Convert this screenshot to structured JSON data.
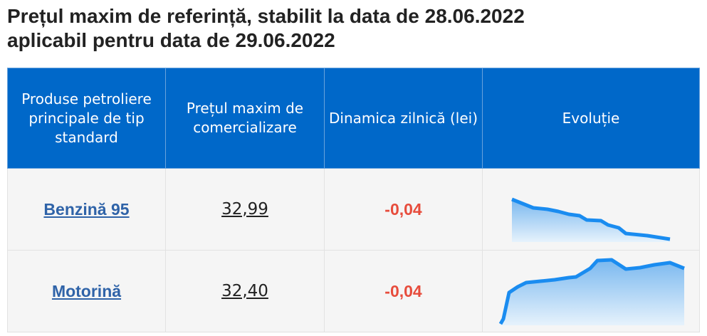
{
  "header": {
    "title_line1": "Prețul maxim de referință, stabilit la data de 28.06.2022",
    "title_line2": "aplicabil pentru data de 29.06.2022"
  },
  "table": {
    "columns": [
      "Produse petroliere principale de tip standard",
      "Prețul maxim de comercializare",
      "Dinamica zilnică (lei)",
      "Evoluție"
    ],
    "rows": [
      [
        "Benzină 95",
        "32,99",
        "-0,04"
      ],
      [
        "Motorină",
        "32,40",
        "-0,04"
      ]
    ]
  }
}
